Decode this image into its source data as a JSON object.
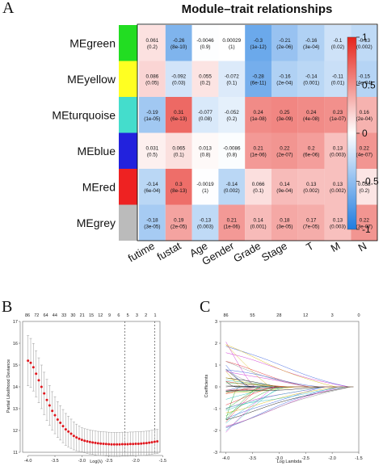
{
  "panels": {
    "a": "A",
    "b": "B",
    "c": "C"
  },
  "chart_data": [
    {
      "type": "heatmap",
      "title": "Module–trait relationships",
      "rows": [
        "MEgreen",
        "MEyellow",
        "MEturquoise",
        "MEblue",
        "MEred",
        "MEgrey"
      ],
      "row_colors": [
        "#22dd22",
        "#ffff22",
        "#44ddcc",
        "#2222dd",
        "#ee2222",
        "#bbbbbb"
      ],
      "columns": [
        "futime",
        "fustat",
        "Age",
        "Gender",
        "Grade",
        "Stage",
        "T",
        "M",
        "N"
      ],
      "values": [
        [
          0.061,
          -0.26,
          -0.0046,
          0.00029,
          -0.3,
          -0.21,
          -0.16,
          -0.1,
          -0.13
        ],
        [
          0.086,
          -0.092,
          0.055,
          -0.072,
          -0.28,
          -0.16,
          -0.14,
          -0.11,
          -0.15
        ],
        [
          -0.19,
          0.31,
          -0.077,
          -0.052,
          0.24,
          0.25,
          0.24,
          0.23,
          0.16
        ],
        [
          0.031,
          0.065,
          0.013,
          -0.0086,
          0.21,
          0.22,
          0.2,
          0.13,
          0.22
        ],
        [
          -0.14,
          0.3,
          -0.0019,
          -0.14,
          0.066,
          0.14,
          0.13,
          0.13,
          0.053
        ],
        [
          -0.18,
          0.19,
          -0.13,
          0.21,
          0.14,
          0.18,
          0.17,
          0.13,
          0.22
        ]
      ],
      "value_labels": [
        [
          "0.061",
          "-0.26",
          "-0.0046",
          "0.00029",
          "-0.3",
          "-0.21",
          "-0.16",
          "-0.1",
          "-0.13"
        ],
        [
          "0.086",
          "-0.092",
          "0.055",
          "-0.072",
          "-0.28",
          "-0.16",
          "-0.14",
          "-0.11",
          "-0.15"
        ],
        [
          "-0.19",
          "0.31",
          "-0.077",
          "-0.052",
          "0.24",
          "0.25",
          "0.24",
          "0.23",
          "0.16"
        ],
        [
          "0.031",
          "0.065",
          "0.013",
          "-0.0086",
          "0.21",
          "0.22",
          "0.2",
          "0.13",
          "0.22"
        ],
        [
          "-0.14",
          "0.3",
          "-0.0019",
          "-0.14",
          "0.066",
          "0.14",
          "0.13",
          "0.13",
          "0.053"
        ],
        [
          "-0.18",
          "0.19",
          "-0.13",
          "0.21",
          "0.14",
          "0.18",
          "0.17",
          "0.13",
          "0.22"
        ]
      ],
      "p_labels": [
        [
          "(0.2)",
          "(8e-10)",
          "(0.9)",
          "(1)",
          "(1e-12)",
          "(2e-06)",
          "(3e-04)",
          "(0.02)",
          "(0.002)"
        ],
        [
          "(0.05)",
          "(0.03)",
          "(0.2)",
          "(0.1)",
          "(6e-11)",
          "(2e-04)",
          "(0.001)",
          "(0.01)",
          "(4e-04)"
        ],
        [
          "(1e-05)",
          "(6e-13)",
          "(0.08)",
          "(0.2)",
          "(1e-08)",
          "(3e-09)",
          "(4e-08)",
          "(1e-07)",
          "(2e-04)"
        ],
        [
          "(0.5)",
          "(0.1)",
          "(0.8)",
          "(0.8)",
          "(1e-06)",
          "(2e-07)",
          "(6e-06)",
          "(0.003)",
          "(4e-07)"
        ],
        [
          "(6e-04)",
          "(8e-13)",
          "(1)",
          "(0.002)",
          "(0.1)",
          "(9e-04)",
          "(0.002)",
          "(0.002)",
          "(0.2)"
        ],
        [
          "(3e-05)",
          "(2e-05)",
          "(0.003)",
          "(1e-06)",
          "(0.001)",
          "(3e-05)",
          "(7e-05)",
          "(0.003)",
          "(3e-07)"
        ]
      ],
      "color_scale": {
        "low": "#1f7ce0",
        "mid": "#ffffff",
        "high": "#e5231b",
        "range": [
          -1,
          1
        ]
      },
      "colorbar_ticks": [
        "1",
        "0.5",
        "0",
        "-0.5",
        "-1"
      ]
    },
    {
      "type": "scatter",
      "xlabel": "Log(λ)",
      "ylabel": "Partial Likelihood Deviance",
      "xlim": [
        -4.1,
        -1.55
      ],
      "ylim": [
        11,
        17
      ],
      "x_ticks": [
        "-4.0",
        "-3.5",
        "-3.0",
        "-2.5",
        "-2.0",
        "-1.5"
      ],
      "y_ticks": [
        "11",
        "12",
        "13",
        "14",
        "15",
        "16",
        "17"
      ],
      "top_ticks": [
        "86",
        "72",
        "64",
        "44",
        "33",
        "30",
        "21",
        "15",
        "12",
        "9",
        "6",
        "5",
        "3",
        "2",
        "1"
      ],
      "vlines": [
        -2.2,
        -1.65
      ],
      "x": [
        -4.0,
        -3.95,
        -3.9,
        -3.85,
        -3.8,
        -3.75,
        -3.7,
        -3.65,
        -3.6,
        -3.55,
        -3.5,
        -3.45,
        -3.4,
        -3.35,
        -3.3,
        -3.25,
        -3.2,
        -3.15,
        -3.1,
        -3.05,
        -3.0,
        -2.95,
        -2.9,
        -2.85,
        -2.8,
        -2.75,
        -2.7,
        -2.65,
        -2.6,
        -2.55,
        -2.5,
        -2.45,
        -2.4,
        -2.35,
        -2.3,
        -2.25,
        -2.2,
        -2.15,
        -2.1,
        -2.05,
        -2.0,
        -1.95,
        -1.9,
        -1.85,
        -1.8,
        -1.75,
        -1.7,
        -1.65,
        -1.6
      ],
      "y": [
        15.2,
        15.1,
        14.9,
        14.6,
        14.3,
        14.0,
        13.7,
        13.4,
        13.15,
        12.9,
        12.7,
        12.5,
        12.35,
        12.2,
        12.05,
        11.95,
        11.85,
        11.75,
        11.68,
        11.62,
        11.57,
        11.53,
        11.5,
        11.47,
        11.45,
        11.43,
        11.41,
        11.4,
        11.39,
        11.38,
        11.37,
        11.36,
        11.36,
        11.36,
        11.36,
        11.37,
        11.37,
        11.37,
        11.38,
        11.38,
        11.39,
        11.39,
        11.4,
        11.41,
        11.42,
        11.44,
        11.46,
        11.48,
        11.5
      ]
    },
    {
      "type": "line",
      "xlabel": "Log Lambda",
      "ylabel": "Coefficients",
      "xlim": [
        -4.1,
        -1.5
      ],
      "ylim": [
        -3,
        3
      ],
      "x_ticks": [
        "-4.0",
        "-3.5",
        "-3.0",
        "-2.5",
        "-2.0",
        "-1.5"
      ],
      "y_ticks": [
        "-3",
        "-2",
        "-1",
        "0",
        "1",
        "2",
        "3"
      ],
      "top_ticks": [
        "86",
        "55",
        "28",
        "12",
        "3",
        "0"
      ]
    }
  ]
}
